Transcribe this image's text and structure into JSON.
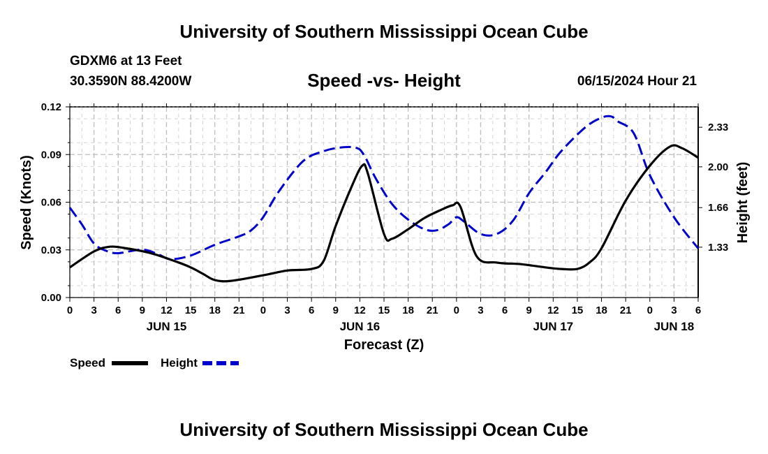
{
  "header": {
    "title": "University of Southern Mississippi Ocean Cube",
    "station": "GDXM6 at 13 Feet",
    "location": "30.3590N  88.4200W",
    "subtitle": "Speed -vs- Height",
    "datetime": "06/15/2024 Hour 21"
  },
  "footer": {
    "title": "University of Southern Mississippi Ocean Cube"
  },
  "colors": {
    "speed": "#000000",
    "height": "#0000cc",
    "grid": "#bdbdbd"
  },
  "chart_data": {
    "type": "line",
    "title": "Speed -vs- Height",
    "xlabel": "Forecast (Z)",
    "ylabel": "Speed (Knots)",
    "y2label": "Height (feet)",
    "xlim_hours": [
      0,
      78
    ],
    "ylim": [
      0,
      0.12
    ],
    "y2lim": [
      0.91,
      2.5
    ],
    "yticks": [
      "0.00",
      "0.03",
      "0.06",
      "0.09",
      "0.12"
    ],
    "y2ticks": [
      "1.33",
      "1.66",
      "2.00",
      "2.33"
    ],
    "xtick_labels": [
      "0",
      "3",
      "6",
      "9",
      "12",
      "15",
      "18",
      "21",
      "0",
      "3",
      "6",
      "9",
      "12",
      "15",
      "18",
      "21",
      "0",
      "3",
      "6",
      "9",
      "12",
      "15",
      "18",
      "21",
      "0",
      "3",
      "6"
    ],
    "day_labels": [
      {
        "label": "JUN 15",
        "hour": 12
      },
      {
        "label": "JUN 16",
        "hour": 36
      },
      {
        "label": "JUN 17",
        "hour": 60
      },
      {
        "label": "JUN 18",
        "hour": 75
      }
    ],
    "legend": [
      {
        "name": "Speed",
        "style": "solid"
      },
      {
        "name": "Height",
        "style": "dashed"
      }
    ],
    "series": [
      {
        "name": "Speed",
        "axis": "left",
        "x": [
          0,
          3,
          5,
          7,
          10,
          13,
          15,
          16.5,
          18,
          20,
          24,
          27,
          30,
          31.5,
          33,
          35,
          36.3,
          37,
          39,
          40,
          42,
          44,
          46,
          47.5,
          48.5,
          50.5,
          53,
          56,
          59,
          61,
          63,
          64.5,
          66,
          69,
          72,
          74.5,
          76,
          78
        ],
        "y": [
          0.019,
          0.029,
          0.032,
          0.031,
          0.028,
          0.023,
          0.019,
          0.015,
          0.011,
          0.0105,
          0.014,
          0.017,
          0.018,
          0.023,
          0.045,
          0.07,
          0.083,
          0.078,
          0.04,
          0.037,
          0.043,
          0.05,
          0.055,
          0.058,
          0.057,
          0.026,
          0.022,
          0.021,
          0.019,
          0.018,
          0.018,
          0.022,
          0.031,
          0.061,
          0.083,
          0.095,
          0.094,
          0.088
        ]
      },
      {
        "name": "Height",
        "axis": "right",
        "x": [
          0,
          1.5,
          3,
          4.5,
          6,
          9,
          11,
          12.5,
          15,
          18,
          21,
          22.5,
          24,
          26,
          29,
          31.5,
          33.5,
          35.5,
          36.5,
          38,
          40,
          42,
          44,
          45.5,
          47,
          48,
          49,
          51,
          53,
          55,
          57,
          59,
          61,
          64,
          66,
          67.2,
          68,
          70,
          72,
          75,
          78
        ],
        "y": [
          1.66,
          1.52,
          1.36,
          1.3,
          1.28,
          1.31,
          1.27,
          1.23,
          1.26,
          1.35,
          1.42,
          1.47,
          1.58,
          1.8,
          2.05,
          2.13,
          2.16,
          2.16,
          2.1,
          1.9,
          1.69,
          1.56,
          1.48,
          1.47,
          1.52,
          1.58,
          1.54,
          1.44,
          1.44,
          1.55,
          1.78,
          1.95,
          2.13,
          2.33,
          2.41,
          2.42,
          2.38,
          2.28,
          1.93,
          1.58,
          1.32
        ]
      }
    ]
  }
}
